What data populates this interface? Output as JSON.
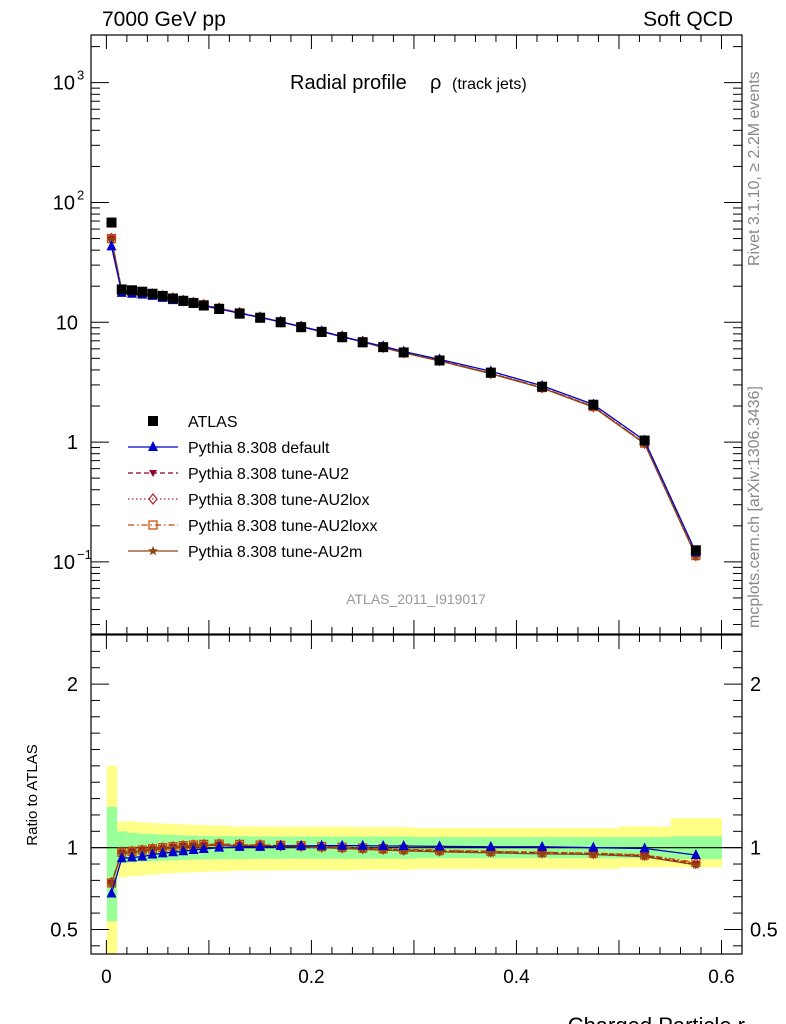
{
  "header": {
    "left": "7000 GeV pp",
    "right": "Soft QCD",
    "side_top": "Rivet 3.1.10, ≥ 2.2M events",
    "side_bottom": "mcplots.cern.ch [arXiv:1306.3436]"
  },
  "main_panel": {
    "title_main": "Radial profile",
    "title_rho": "ρ",
    "title_sub": "(track jets)",
    "analysis_label": "ATLAS_2011_I919017",
    "y_scale": "log",
    "ylim": [
      0.025,
      2500
    ],
    "y_ticks": [
      {
        "v": 0.1,
        "base": "10",
        "exp": "−1"
      },
      {
        "v": 1,
        "base": "1",
        "exp": ""
      },
      {
        "v": 10,
        "base": "10",
        "exp": ""
      },
      {
        "v": 100,
        "base": "10",
        "exp": "2"
      },
      {
        "v": 1000,
        "base": "10",
        "exp": "3"
      }
    ]
  },
  "ratio_panel": {
    "ylabel": "Ratio to ATLAS",
    "ylim": [
      0.35,
      2.3
    ],
    "y_ticks": [
      "0.5",
      "1",
      "2"
    ],
    "y_tick_values": [
      0.5,
      1,
      2
    ]
  },
  "x_axis": {
    "label": "Charged Particle r",
    "xlim": [
      -0.015,
      0.62
    ],
    "ticks": [
      "0",
      "0.2",
      "0.4",
      "0.6"
    ],
    "tick_values": [
      0,
      0.2,
      0.4,
      0.6
    ]
  },
  "colors": {
    "data": "#000000",
    "default": "#0000cc",
    "au2": "#990033",
    "au2lox": "#b22222",
    "au2loxx": "#cc4400",
    "au2m": "#8b4513",
    "band_inner": "#99ff99",
    "band_outer": "#ffff88"
  },
  "chart_data": {
    "type": "scatter",
    "x": [
      0.005,
      0.015,
      0.025,
      0.035,
      0.045,
      0.055,
      0.065,
      0.075,
      0.085,
      0.095,
      0.11,
      0.13,
      0.15,
      0.17,
      0.19,
      0.21,
      0.23,
      0.25,
      0.27,
      0.29,
      0.325,
      0.375,
      0.425,
      0.475,
      0.525,
      0.575
    ],
    "x_edges": [
      0,
      0.01,
      0.02,
      0.03,
      0.04,
      0.05,
      0.06,
      0.07,
      0.08,
      0.09,
      0.1,
      0.12,
      0.14,
      0.16,
      0.18,
      0.2,
      0.22,
      0.24,
      0.26,
      0.28,
      0.3,
      0.35,
      0.4,
      0.45,
      0.5,
      0.55,
      0.6
    ],
    "series": [
      {
        "name": "ATLAS",
        "key": "data",
        "style": "data",
        "values": [
          68,
          18.8,
          18.5,
          18.0,
          17.3,
          16.6,
          15.8,
          15.1,
          14.5,
          13.8,
          12.9,
          11.8,
          10.9,
          10.0,
          9.1,
          8.3,
          7.5,
          6.8,
          6.2,
          5.6,
          4.8,
          3.8,
          2.9,
          2.05,
          1.03,
          0.125
        ],
        "ratio": [
          1,
          1,
          1,
          1,
          1,
          1,
          1,
          1,
          1,
          1,
          1,
          1,
          1,
          1,
          1,
          1,
          1,
          1,
          1,
          1,
          1,
          1,
          1,
          1,
          1,
          1
        ]
      },
      {
        "name": "Pythia 8.308 default",
        "key": "default",
        "style": "solid",
        "marker": "triangle-up",
        "values": [
          43,
          17.6,
          17.3,
          17.0,
          16.6,
          16.0,
          15.3,
          14.8,
          14.3,
          13.7,
          12.9,
          11.9,
          11.0,
          10.1,
          9.2,
          8.4,
          7.6,
          6.9,
          6.3,
          5.7,
          4.9,
          3.9,
          2.95,
          2.06,
          1.03,
          0.12
        ],
        "ratio": [
          0.72,
          0.935,
          0.94,
          0.945,
          0.958,
          0.965,
          0.972,
          0.978,
          0.986,
          0.992,
          1.0,
          1.005,
          1.005,
          1.01,
          1.01,
          1.012,
          1.012,
          1.012,
          1.01,
          1.01,
          1.008,
          1.005,
          1.005,
          1.0,
          0.995,
          0.955
        ]
      },
      {
        "name": "Pythia 8.308 tune-AU2",
        "key": "au2",
        "style": "dashed",
        "marker": "triangle-down",
        "values": [
          50,
          18.3,
          18.1,
          17.7,
          17.2,
          16.6,
          15.9,
          15.2,
          14.6,
          14.0,
          13.1,
          12.0,
          11.0,
          10.1,
          9.2,
          8.4,
          7.6,
          6.9,
          6.2,
          5.6,
          4.8,
          3.75,
          2.85,
          1.98,
          0.98,
          0.113
        ],
        "ratio": [
          0.785,
          0.97,
          0.975,
          0.982,
          0.99,
          0.996,
          1.003,
          1.01,
          1.012,
          1.015,
          1.018,
          1.015,
          1.012,
          1.012,
          1.01,
          1.005,
          1.0,
          0.995,
          0.99,
          0.985,
          0.98,
          0.975,
          0.97,
          0.965,
          0.95,
          0.9
        ]
      },
      {
        "name": "Pythia 8.308 tune-AU2lox",
        "key": "au2lox",
        "style": "dotted",
        "marker": "diamond-open",
        "values": [
          50,
          18.3,
          18.1,
          17.7,
          17.2,
          16.6,
          15.9,
          15.2,
          14.6,
          14.0,
          13.1,
          12.0,
          11.0,
          10.1,
          9.2,
          8.4,
          7.6,
          6.9,
          6.2,
          5.6,
          4.8,
          3.75,
          2.85,
          1.98,
          0.98,
          0.113
        ],
        "ratio": [
          0.785,
          0.972,
          0.976,
          0.984,
          0.992,
          0.998,
          1.005,
          1.01,
          1.015,
          1.018,
          1.02,
          1.017,
          1.015,
          1.013,
          1.01,
          1.005,
          1.0,
          0.996,
          0.992,
          0.987,
          0.982,
          0.976,
          0.97,
          0.965,
          0.955,
          0.905
        ]
      },
      {
        "name": "Pythia 8.308 tune-AU2loxx",
        "key": "au2loxx",
        "style": "dashdot",
        "marker": "square-open",
        "values": [
          50,
          18.3,
          18.1,
          17.7,
          17.2,
          16.6,
          15.9,
          15.2,
          14.6,
          14.0,
          13.1,
          12.0,
          11.0,
          10.1,
          9.2,
          8.4,
          7.6,
          6.9,
          6.2,
          5.6,
          4.8,
          3.75,
          2.85,
          1.98,
          0.98,
          0.113
        ],
        "ratio": [
          0.785,
          0.972,
          0.978,
          0.985,
          0.993,
          1.0,
          1.006,
          1.012,
          1.016,
          1.02,
          1.022,
          1.02,
          1.016,
          1.014,
          1.012,
          1.007,
          1.003,
          0.998,
          0.994,
          0.99,
          0.985,
          0.978,
          0.972,
          0.967,
          0.956,
          0.91
        ]
      },
      {
        "name": "Pythia 8.308 tune-AU2m",
        "key": "au2m",
        "style": "solid",
        "marker": "star",
        "values": [
          49,
          18.2,
          18.0,
          17.6,
          17.1,
          16.5,
          15.8,
          15.1,
          14.5,
          13.9,
          13.0,
          11.9,
          10.95,
          10.05,
          9.15,
          8.35,
          7.55,
          6.85,
          6.15,
          5.55,
          4.75,
          3.72,
          2.82,
          1.96,
          0.97,
          0.111
        ],
        "ratio": [
          0.78,
          0.965,
          0.97,
          0.978,
          0.985,
          0.992,
          0.998,
          1.005,
          1.008,
          1.012,
          1.015,
          1.012,
          1.01,
          1.008,
          1.005,
          1.0,
          0.995,
          0.99,
          0.985,
          0.98,
          0.975,
          0.968,
          0.962,
          0.958,
          0.945,
          0.895
        ]
      }
    ],
    "band_inner": {
      "lo": [
        0.55,
        0.905,
        0.91,
        0.915,
        0.918,
        0.92,
        0.922,
        0.925,
        0.927,
        0.928,
        0.93,
        0.93,
        0.932,
        0.932,
        0.932,
        0.932,
        0.932,
        0.932,
        0.932,
        0.932,
        0.935,
        0.935,
        0.935,
        0.935,
        0.935,
        0.93
      ],
      "hi": [
        1.25,
        1.1,
        1.09,
        1.085,
        1.082,
        1.08,
        1.078,
        1.075,
        1.073,
        1.072,
        1.07,
        1.07,
        1.068,
        1.068,
        1.068,
        1.068,
        1.068,
        1.068,
        1.068,
        1.068,
        1.065,
        1.065,
        1.065,
        1.065,
        1.065,
        1.07
      ]
    },
    "band_outer": {
      "lo": [
        0.35,
        0.82,
        0.825,
        0.83,
        0.835,
        0.84,
        0.845,
        0.848,
        0.85,
        0.852,
        0.855,
        0.86,
        0.86,
        0.862,
        0.862,
        0.862,
        0.862,
        0.865,
        0.865,
        0.865,
        0.87,
        0.87,
        0.87,
        0.87,
        0.88,
        0.88
      ],
      "hi": [
        1.5,
        1.16,
        1.16,
        1.155,
        1.15,
        1.148,
        1.145,
        1.142,
        1.14,
        1.138,
        1.135,
        1.13,
        1.13,
        1.128,
        1.128,
        1.128,
        1.128,
        1.125,
        1.125,
        1.125,
        1.12,
        1.12,
        1.12,
        1.12,
        1.13,
        1.18
      ]
    }
  }
}
